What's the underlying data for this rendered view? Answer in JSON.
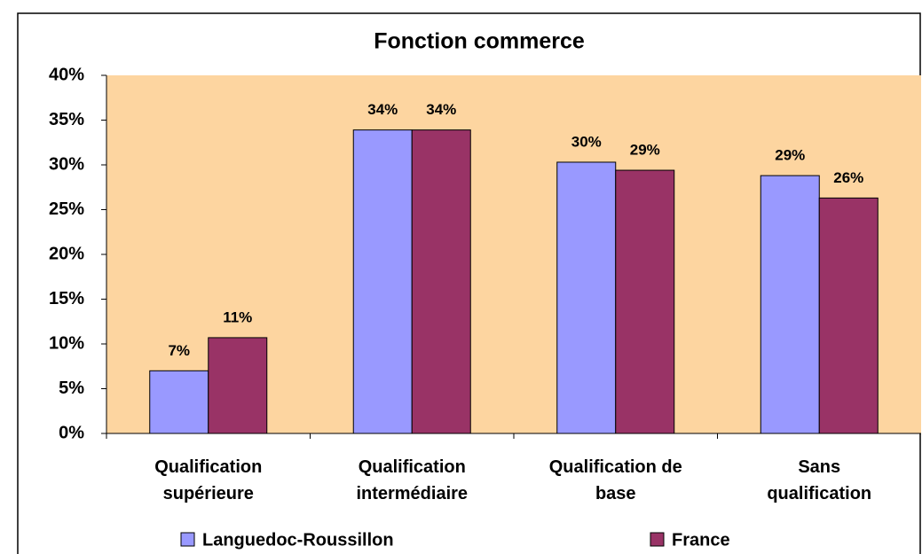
{
  "chart_data": {
    "type": "bar",
    "title": "Fonction commerce",
    "categories": [
      "Qualification\nsupérieure",
      "Qualification\nintermédiaire",
      "Qualification de\nbase",
      "Sans\nqualification"
    ],
    "series": [
      {
        "name": "Languedoc-Roussillon",
        "color": "#9999ff",
        "values": [
          7.0,
          33.9,
          30.3,
          28.8
        ],
        "value_labels": [
          "7%",
          "34%",
          "30%",
          "29%"
        ]
      },
      {
        "name": "France",
        "color": "#993366",
        "values": [
          10.7,
          33.9,
          29.4,
          26.3
        ],
        "value_labels": [
          "11%",
          "34%",
          "29%",
          "26%"
        ]
      }
    ],
    "ylim": [
      0,
      40
    ],
    "yticks": [
      {
        "value": 0,
        "label": "0%"
      },
      {
        "value": 5,
        "label": "5%"
      },
      {
        "value": 10,
        "label": "10%"
      },
      {
        "value": 15,
        "label": "15%"
      },
      {
        "value": 20,
        "label": "20%"
      },
      {
        "value": 25,
        "label": "25%"
      },
      {
        "value": 30,
        "label": "30%"
      },
      {
        "value": 35,
        "label": "35%"
      },
      {
        "value": 40,
        "label": "40%"
      }
    ],
    "grid": false,
    "legend": "bottom",
    "background": "#fdd5a0"
  }
}
